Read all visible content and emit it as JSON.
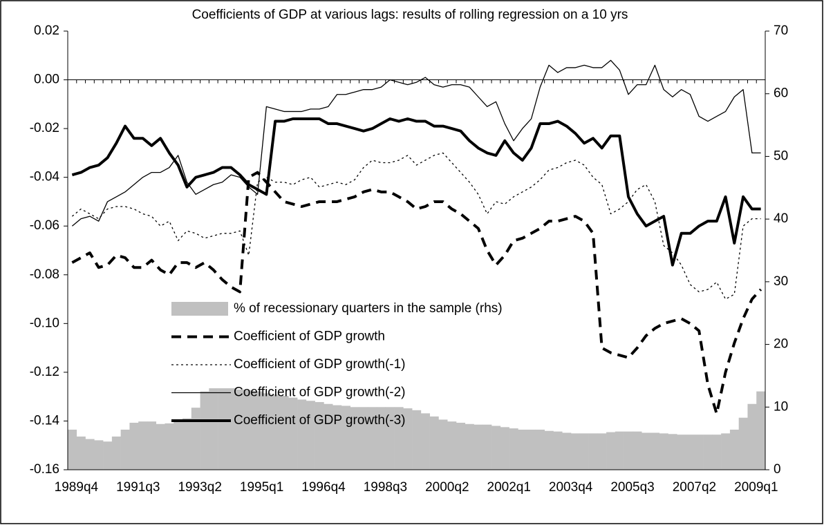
{
  "chart_data": {
    "type": "line",
    "title": "Coefficients of GDP at various lags: results of rolling regression on a 10 yrs",
    "categories": [
      "1989q4",
      null,
      null,
      null,
      null,
      null,
      null,
      "1991q3",
      null,
      null,
      null,
      null,
      null,
      null,
      "1993q2",
      null,
      null,
      null,
      null,
      null,
      null,
      "1995q1",
      null,
      null,
      null,
      null,
      null,
      null,
      "1996q4",
      null,
      null,
      null,
      null,
      null,
      null,
      "1998q3",
      null,
      null,
      null,
      null,
      null,
      null,
      "2000q2",
      null,
      null,
      null,
      null,
      null,
      null,
      "2002q1",
      null,
      null,
      null,
      null,
      null,
      null,
      "2003q4",
      null,
      null,
      null,
      null,
      null,
      null,
      "2005q3",
      null,
      null,
      null,
      null,
      null,
      null,
      "2007q2",
      null,
      null,
      null,
      null,
      null,
      null,
      "2009q1",
      null
    ],
    "ylim": [
      -0.16,
      0.02
    ],
    "yticks": [
      0.02,
      {
        "value": 0,
        "label": "0.00"
      },
      -0.02,
      -0.04,
      -0.06,
      -0.08,
      {
        "value": -0.1,
        "label": "-0.10"
      },
      -0.12,
      -0.14,
      -0.16
    ],
    "y2lim": [
      0,
      70
    ],
    "y2ticks": [
      0,
      10,
      20,
      30,
      40,
      50,
      60,
      70
    ],
    "legend_position": "lower left",
    "series": [
      {
        "name": "% of recessionary quarters in the sample (rhs)",
        "type": "bar",
        "axis": "y2",
        "color": "#c0c0c0",
        "values": [
          6.4,
          5.3,
          4.9,
          4.7,
          4.5,
          5.3,
          6.4,
          7.5,
          7.7,
          7.7,
          7.3,
          7.4,
          7.7,
          8.2,
          9.9,
          12.5,
          13.0,
          13.0,
          13.0,
          12.8,
          12.7,
          12.5,
          12.2,
          12.0,
          11.8,
          11.5,
          11.2,
          11.0,
          10.8,
          10.5,
          10.3,
          10.2,
          10.0,
          10.0,
          10.0,
          10.0,
          10.0,
          10.0,
          9.8,
          9.5,
          9.0,
          8.5,
          8.0,
          7.7,
          7.5,
          7.3,
          7.2,
          7.2,
          7.0,
          6.8,
          6.6,
          6.4,
          6.4,
          6.4,
          6.2,
          6.1,
          5.9,
          5.8,
          5.8,
          5.8,
          5.8,
          6.0,
          6.1,
          6.1,
          6.1,
          5.9,
          5.9,
          5.8,
          5.7,
          5.6,
          5.6,
          5.6,
          5.6,
          5.6,
          5.8,
          6.4,
          8.3,
          10.5,
          12.5
        ]
      },
      {
        "name": "Coefficient of GDP growth",
        "type": "line",
        "color": "#000000",
        "line_style": "dashed",
        "line_width": 4,
        "values": [
          -0.075,
          -0.073,
          -0.071,
          -0.077,
          -0.076,
          -0.072,
          -0.073,
          -0.077,
          -0.077,
          -0.074,
          -0.078,
          -0.08,
          -0.075,
          -0.075,
          -0.077,
          -0.075,
          -0.078,
          -0.082,
          -0.085,
          -0.087,
          -0.04,
          -0.038,
          -0.042,
          -0.046,
          -0.05,
          -0.051,
          -0.052,
          -0.051,
          -0.05,
          -0.05,
          -0.05,
          -0.049,
          -0.048,
          -0.046,
          -0.045,
          -0.046,
          -0.046,
          -0.048,
          -0.05,
          -0.053,
          -0.052,
          -0.05,
          -0.05,
          -0.053,
          -0.055,
          -0.058,
          -0.061,
          -0.07,
          -0.076,
          -0.072,
          -0.066,
          -0.065,
          -0.063,
          -0.061,
          -0.058,
          -0.058,
          -0.057,
          -0.056,
          -0.058,
          -0.063,
          -0.11,
          -0.112,
          -0.113,
          -0.114,
          -0.11,
          -0.105,
          -0.102,
          -0.1,
          -0.099,
          -0.098,
          -0.1,
          -0.103,
          -0.125,
          -0.137,
          -0.12,
          -0.108,
          -0.098,
          -0.09,
          -0.086
        ]
      },
      {
        "name": "Coefficient of GDP growth(-1)",
        "type": "line",
        "color": "#000000",
        "line_style": "dotted",
        "line_width": 1.3,
        "values": [
          -0.056,
          -0.053,
          -0.055,
          -0.057,
          -0.053,
          -0.052,
          -0.052,
          -0.053,
          -0.055,
          -0.056,
          -0.06,
          -0.058,
          -0.066,
          -0.062,
          -0.063,
          -0.065,
          -0.064,
          -0.063,
          -0.063,
          -0.062,
          -0.072,
          -0.042,
          -0.04,
          -0.042,
          -0.042,
          -0.043,
          -0.041,
          -0.04,
          -0.044,
          -0.043,
          -0.042,
          -0.043,
          -0.041,
          -0.036,
          -0.033,
          -0.034,
          -0.034,
          -0.033,
          -0.031,
          -0.035,
          -0.033,
          -0.031,
          -0.03,
          -0.034,
          -0.038,
          -0.042,
          -0.047,
          -0.055,
          -0.05,
          -0.051,
          -0.048,
          -0.046,
          -0.044,
          -0.041,
          -0.037,
          -0.036,
          -0.034,
          -0.033,
          -0.035,
          -0.04,
          -0.043,
          -0.055,
          -0.053,
          -0.05,
          -0.045,
          -0.043,
          -0.05,
          -0.068,
          -0.071,
          -0.076,
          -0.084,
          -0.087,
          -0.086,
          -0.083,
          -0.09,
          -0.088,
          -0.06,
          -0.057,
          -0.057
        ]
      },
      {
        "name": "Coefficient of GDP growth(-2)",
        "type": "line",
        "color": "#000000",
        "line_style": "solid",
        "line_width": 1.3,
        "values": [
          -0.06,
          -0.057,
          -0.056,
          -0.058,
          -0.05,
          -0.048,
          -0.046,
          -0.043,
          -0.04,
          -0.038,
          -0.038,
          -0.036,
          -0.031,
          -0.042,
          -0.047,
          -0.045,
          -0.043,
          -0.042,
          -0.039,
          -0.04,
          -0.044,
          -0.047,
          -0.011,
          -0.012,
          -0.013,
          -0.013,
          -0.013,
          -0.012,
          -0.012,
          -0.011,
          -0.006,
          -0.006,
          -0.005,
          -0.004,
          -0.004,
          -0.003,
          0,
          -0.001,
          -0.002,
          -0.001,
          0.001,
          -0.002,
          -0.003,
          -0.002,
          -0.002,
          -0.003,
          -0.007,
          -0.011,
          -0.009,
          -0.018,
          -0.025,
          -0.02,
          -0.016,
          -0.003,
          0.006,
          0.003,
          0.005,
          0.005,
          0.006,
          0.005,
          0.005,
          0.008,
          0.004,
          -0.006,
          -0.002,
          -0.002,
          0.006,
          -0.004,
          -0.007,
          -0.004,
          -0.006,
          -0.015,
          -0.017,
          -0.015,
          -0.013,
          -0.007,
          -0.004,
          -0.03,
          -0.03
        ]
      },
      {
        "name": "Coefficient of GDP growth(-3)",
        "type": "line",
        "color": "#000000",
        "line_style": "solid",
        "line_width": 4,
        "values": [
          -0.039,
          -0.038,
          -0.036,
          -0.035,
          -0.032,
          -0.026,
          -0.019,
          -0.024,
          -0.024,
          -0.027,
          -0.024,
          -0.03,
          -0.035,
          -0.044,
          -0.04,
          -0.039,
          -0.038,
          -0.036,
          -0.036,
          -0.039,
          -0.043,
          -0.045,
          -0.047,
          -0.017,
          -0.017,
          -0.016,
          -0.016,
          -0.016,
          -0.016,
          -0.018,
          -0.018,
          -0.019,
          -0.02,
          -0.021,
          -0.02,
          -0.018,
          -0.016,
          -0.017,
          -0.016,
          -0.017,
          -0.017,
          -0.019,
          -0.019,
          -0.02,
          -0.021,
          -0.025,
          -0.028,
          -0.03,
          -0.031,
          -0.025,
          -0.03,
          -0.033,
          -0.028,
          -0.018,
          -0.018,
          -0.017,
          -0.019,
          -0.022,
          -0.026,
          -0.024,
          -0.028,
          -0.023,
          -0.023,
          -0.048,
          -0.055,
          -0.06,
          -0.058,
          -0.056,
          -0.076,
          -0.063,
          -0.063,
          -0.06,
          -0.058,
          -0.058,
          -0.048,
          -0.067,
          -0.048,
          -0.053,
          -0.053
        ]
      }
    ]
  }
}
